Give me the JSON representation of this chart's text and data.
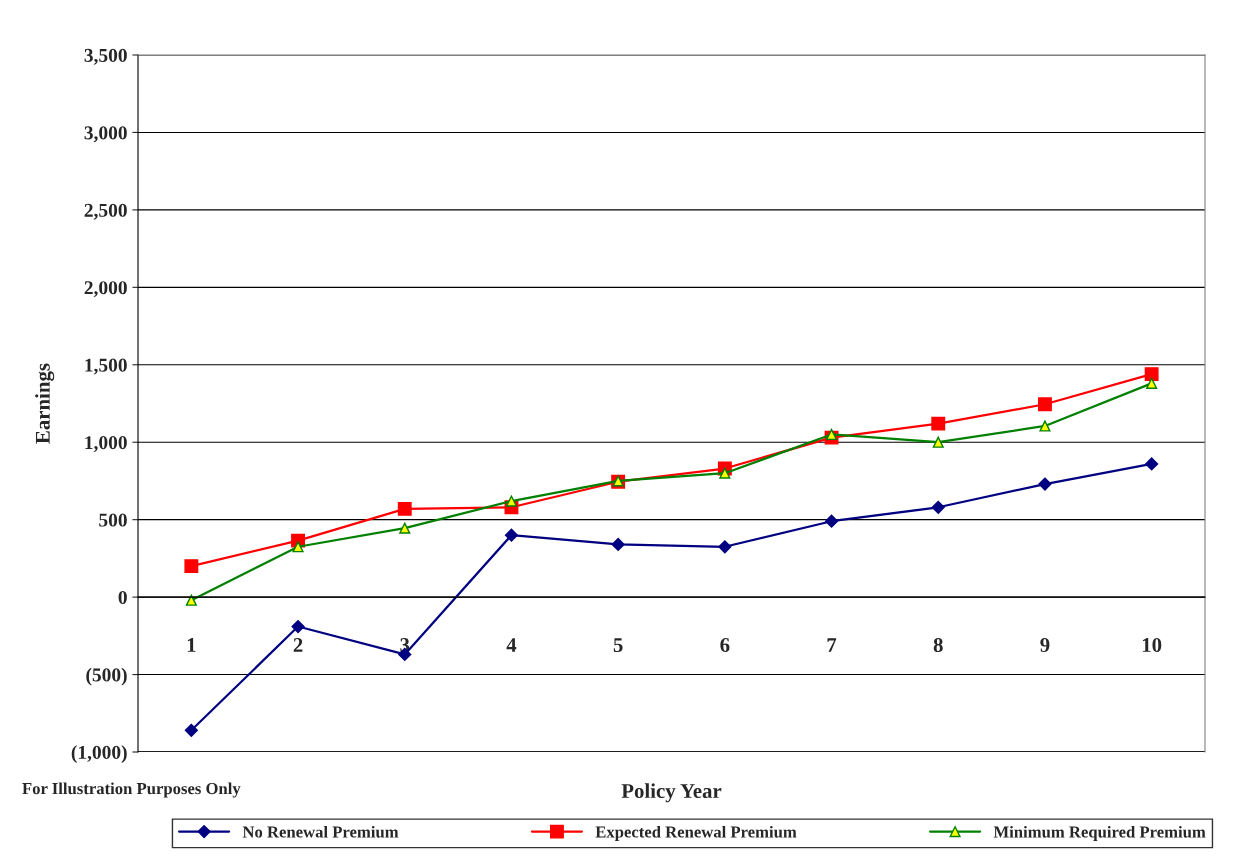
{
  "chart_data": {
    "type": "line",
    "xlabel": "Policy Year",
    "ylabel": "Earnings",
    "categories": [
      "1",
      "2",
      "3",
      "4",
      "5",
      "6",
      "7",
      "8",
      "9",
      "10"
    ],
    "series": [
      {
        "name": "No Renewal Premium",
        "color": "#000080",
        "marker": "diamond",
        "values": [
          -860,
          -190,
          -370,
          400,
          340,
          325,
          490,
          580,
          730,
          860
        ]
      },
      {
        "name": "Expected Renewal Premium",
        "color": "#ff0000",
        "marker": "square",
        "values": [
          200,
          365,
          570,
          580,
          745,
          830,
          1030,
          1120,
          1245,
          1440
        ]
      },
      {
        "name": "Minimum Required Premium",
        "color": "#008000",
        "marker": "triangle",
        "values": [
          -20,
          325,
          445,
          620,
          750,
          800,
          1050,
          1000,
          1105,
          1380
        ]
      }
    ],
    "ylim": [
      -1000,
      3500
    ],
    "yticks": [
      {
        "value": -1000,
        "label": "(1,000)"
      },
      {
        "value": -500,
        "label": "(500)"
      },
      0,
      {
        "value": 500,
        "label": "500"
      },
      {
        "value": 1000,
        "label": "1,000"
      },
      {
        "value": 1500,
        "label": "1,500"
      },
      {
        "value": 2000,
        "label": "2,000"
      },
      {
        "value": 2500,
        "label": "2,500"
      },
      {
        "value": 3000,
        "label": "3,000"
      },
      {
        "value": 3500,
        "label": "3,500"
      }
    ],
    "grid": "y",
    "legend": "bottom",
    "line_style": "solid",
    "annotations": [
      "For Illustration Purposes Only"
    ]
  }
}
